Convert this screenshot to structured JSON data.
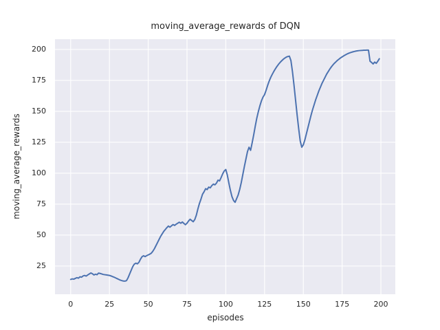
{
  "chart_data": {
    "type": "line",
    "title": "moving_average_rewards of DQN",
    "xlabel": "episodes",
    "ylabel": "moving_average_rewards",
    "x_ticks": [
      0,
      25,
      50,
      75,
      100,
      125,
      150,
      175,
      200
    ],
    "y_ticks": [
      25,
      50,
      75,
      100,
      125,
      150,
      175,
      200
    ],
    "xlim": [
      -10.1,
      209.3
    ],
    "ylim": [
      2.2,
      208.3
    ],
    "grid": true,
    "legend": "none",
    "style": {
      "figure_background": "#ffffff",
      "axes_background": "#EAEAF2",
      "grid_color": "#ffffff",
      "line_color": "#4C72B0",
      "text_color": "#262626"
    },
    "series": [
      {
        "name": "moving_average_rewards",
        "x_is_index": true,
        "values": [
          14.2,
          14.6,
          14.4,
          15.0,
          15.6,
          15.2,
          16.3,
          16.0,
          17.0,
          17.4,
          16.9,
          17.8,
          18.6,
          19.4,
          18.8,
          17.8,
          18.4,
          18.0,
          19.3,
          19.0,
          18.6,
          18.2,
          18.0,
          17.8,
          17.6,
          17.4,
          17.0,
          16.5,
          16.0,
          15.4,
          14.8,
          14.2,
          13.6,
          13.2,
          12.9,
          12.8,
          13.2,
          15.5,
          18.5,
          21.5,
          24.5,
          26.5,
          27.3,
          26.8,
          28.0,
          30.5,
          32.5,
          33.3,
          32.6,
          33.4,
          34.0,
          34.6,
          35.4,
          37.0,
          39.0,
          41.5,
          44.0,
          46.5,
          49.0,
          51.0,
          53.0,
          54.5,
          56.0,
          57.3,
          56.4,
          57.5,
          58.5,
          57.8,
          58.8,
          59.6,
          60.4,
          59.6,
          60.6,
          59.4,
          58.4,
          59.6,
          61.4,
          62.8,
          61.8,
          60.8,
          62.5,
          66.0,
          71.0,
          75.5,
          79.0,
          83.0,
          85.0,
          87.5,
          86.8,
          88.8,
          88.2,
          90.0,
          91.2,
          90.6,
          92.0,
          94.4,
          93.8,
          96.5,
          99.5,
          101.8,
          103.0,
          98.5,
          92.0,
          86.0,
          81.0,
          78.0,
          76.5,
          79.5,
          82.5,
          87.0,
          92.5,
          99.0,
          105.5,
          111.5,
          117.5,
          121.0,
          118.5,
          124.5,
          131.0,
          138.0,
          144.5,
          149.8,
          154.5,
          158.5,
          161.5,
          163.5,
          167.0,
          171.0,
          174.5,
          177.5,
          180.0,
          182.3,
          184.4,
          186.3,
          188.0,
          189.5,
          190.8,
          192.0,
          193.0,
          193.8,
          194.3,
          194.6,
          191.0,
          182.0,
          171.0,
          159.0,
          147.0,
          136.0,
          126.0,
          121.0,
          123.0,
          127.0,
          132.0,
          137.0,
          142.0,
          147.0,
          151.5,
          155.5,
          159.5,
          163.0,
          166.5,
          169.5,
          172.5,
          175.0,
          177.5,
          180.0,
          182.0,
          184.0,
          185.8,
          187.4,
          188.8,
          190.0,
          191.2,
          192.2,
          193.2,
          194.0,
          194.8,
          195.5,
          196.2,
          196.8,
          197.3,
          197.7,
          198.1,
          198.4,
          198.7,
          198.9,
          199.1,
          199.2,
          199.3,
          199.4,
          199.4,
          199.5,
          199.5,
          190.5,
          189.5,
          188.3,
          189.8,
          188.8,
          190.5,
          192.5
        ]
      }
    ]
  }
}
